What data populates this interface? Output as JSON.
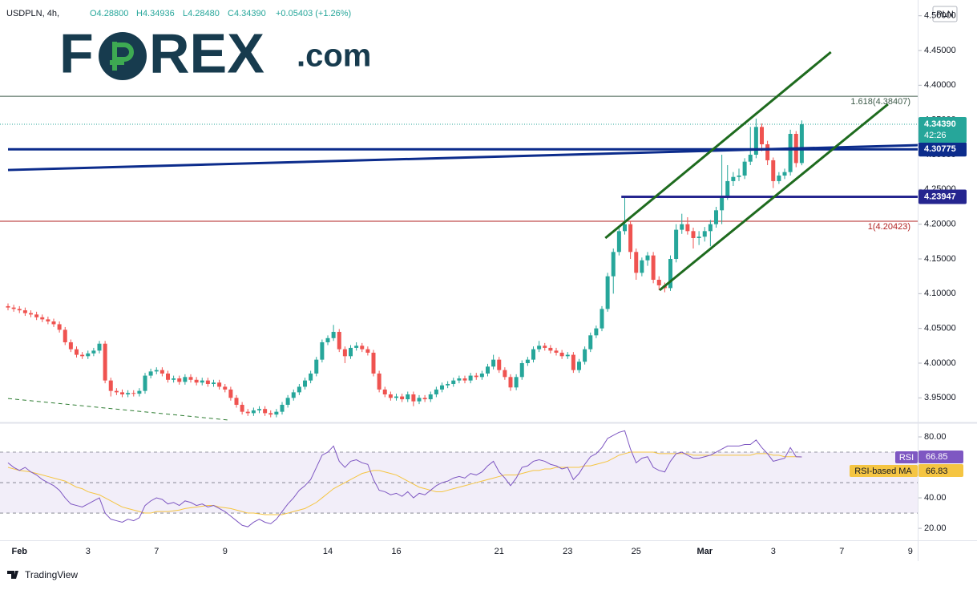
{
  "logo": {
    "parts": [
      "F",
      "REX",
      ".com"
    ]
  },
  "footer": "TradingView",
  "chart_data": {
    "type": "candlestick",
    "symbol": "USDPLN, 4h,",
    "header": [
      "O4.28800",
      "H4.34936",
      "L4.28480",
      "C4.34390",
      "+0.05403 (+1.26%)"
    ],
    "currency": "PLN",
    "categories": [
      null,
      null,
      "Feb",
      null,
      null,
      null,
      null,
      null,
      null,
      null,
      null,
      null,
      null,
      null,
      "3",
      null,
      null,
      null,
      null,
      null,
      null,
      null,
      null,
      null,
      null,
      null,
      "7",
      null,
      null,
      null,
      null,
      null,
      null,
      null,
      null,
      null,
      null,
      null,
      "9",
      null,
      null,
      null,
      null,
      null,
      null,
      null,
      null,
      null,
      null,
      null,
      null,
      null,
      null,
      null,
      null,
      null,
      "14",
      null,
      null,
      null,
      null,
      null,
      null,
      null,
      null,
      null,
      null,
      null,
      "16",
      null,
      null,
      null,
      null,
      null,
      null,
      null,
      null,
      null,
      null,
      null,
      null,
      null,
      null,
      null,
      null,
      null,
      "21",
      null,
      null,
      null,
      null,
      null,
      null,
      null,
      null,
      null,
      null,
      null,
      "23",
      null,
      null,
      null,
      null,
      null,
      null,
      null,
      null,
      null,
      null,
      null,
      "25",
      null,
      null,
      null,
      null,
      null,
      null,
      null,
      null,
      null,
      null,
      null,
      "Mar",
      null,
      null,
      null,
      null,
      null,
      null,
      null,
      null,
      null,
      null,
      null,
      "3",
      null,
      null,
      null,
      null,
      null,
      null,
      null,
      null,
      null,
      null,
      null,
      "7",
      null,
      null,
      null,
      null,
      null,
      null,
      null,
      null,
      null,
      null,
      null,
      "9",
      null
    ],
    "open": [
      4.082,
      4.08,
      4.078,
      4.076,
      4.072,
      4.07,
      4.066,
      4.063,
      4.06,
      4.056,
      4.048,
      4.03,
      4.02,
      4.012,
      4.01,
      4.014,
      4.018,
      4.028,
      3.975,
      3.96,
      3.958,
      3.955,
      3.957,
      3.956,
      3.96,
      3.982,
      3.988,
      3.99,
      3.985,
      3.976,
      3.978,
      3.973,
      3.98,
      3.976,
      3.972,
      3.975,
      3.97,
      3.972,
      3.966,
      3.962,
      3.95,
      3.94,
      3.93,
      3.928,
      3.932,
      3.934,
      3.928,
      3.926,
      3.93,
      3.94,
      3.95,
      3.958,
      3.966,
      3.975,
      3.985,
      4.005,
      4.03,
      4.036,
      4.045,
      4.02,
      4.01,
      4.022,
      4.025,
      4.02,
      4.015,
      3.985,
      3.962,
      3.955,
      3.95,
      3.952,
      3.948,
      3.955,
      3.945,
      3.95,
      3.948,
      3.955,
      3.962,
      3.968,
      3.97,
      3.975,
      3.978,
      3.975,
      3.982,
      3.98,
      3.985,
      3.995,
      4.005,
      3.99,
      3.98,
      3.965,
      3.98,
      4.0,
      4.005,
      4.02,
      4.025,
      4.022,
      4.018,
      4.015,
      4.01,
      4.012,
      3.99,
      4.002,
      4.02,
      4.04,
      4.05,
      4.078,
      4.125,
      4.16,
      4.19,
      4.2,
      4.16,
      4.13,
      4.148,
      4.155,
      4.12,
      4.112,
      4.108,
      4.15,
      4.192,
      4.2,
      4.19,
      4.18,
      4.182,
      4.19,
      4.2,
      4.22,
      4.24,
      4.262,
      4.268,
      4.27,
      4.29,
      4.3,
      4.34,
      4.315,
      4.292,
      4.262,
      4.27,
      4.275,
      4.33,
      4.288,
      null,
      null,
      null,
      null,
      null,
      null,
      null,
      null,
      null,
      null,
      null,
      null,
      null,
      null,
      null,
      null,
      null,
      null,
      null,
      null
    ],
    "high": [
      4.086,
      4.084,
      4.082,
      4.08,
      4.076,
      4.074,
      4.07,
      4.067,
      4.064,
      4.06,
      4.052,
      4.034,
      4.024,
      4.016,
      4.018,
      4.022,
      4.032,
      4.032,
      3.979,
      3.964,
      3.962,
      3.961,
      3.961,
      3.964,
      3.986,
      3.992,
      3.994,
      3.994,
      3.989,
      3.982,
      3.982,
      3.984,
      3.984,
      3.98,
      3.979,
      3.979,
      3.976,
      3.976,
      3.97,
      3.966,
      3.954,
      3.944,
      3.934,
      3.936,
      3.938,
      3.938,
      3.932,
      3.934,
      3.944,
      3.954,
      3.962,
      3.97,
      3.979,
      3.989,
      4.009,
      4.034,
      4.04,
      4.055,
      4.049,
      4.024,
      4.026,
      4.03,
      4.029,
      4.024,
      4.019,
      3.989,
      3.966,
      3.959,
      3.956,
      3.956,
      3.959,
      3.959,
      3.954,
      3.954,
      3.959,
      3.966,
      3.972,
      3.974,
      3.979,
      3.982,
      3.982,
      3.986,
      3.986,
      3.989,
      3.999,
      4.012,
      4.009,
      3.994,
      3.984,
      3.984,
      4.004,
      4.009,
      4.024,
      4.032,
      4.029,
      4.026,
      4.022,
      4.019,
      4.016,
      4.016,
      4.006,
      4.024,
      4.044,
      4.054,
      4.082,
      4.13,
      4.165,
      4.196,
      4.239,
      4.205,
      4.165,
      4.152,
      4.16,
      4.16,
      4.125,
      4.116,
      4.155,
      4.2,
      4.215,
      4.21,
      4.195,
      4.19,
      4.196,
      4.206,
      4.225,
      4.3,
      4.285,
      4.275,
      4.28,
      4.295,
      4.34,
      4.352,
      4.345,
      4.32,
      4.296,
      4.275,
      4.28,
      4.336,
      4.334,
      4.34936,
      null,
      null,
      null,
      null,
      null,
      null,
      null,
      null,
      null,
      null,
      null,
      null,
      null,
      null,
      null,
      null,
      null,
      null,
      null,
      null
    ],
    "low": [
      4.076,
      4.074,
      4.072,
      4.068,
      4.066,
      4.062,
      4.059,
      4.056,
      4.052,
      4.044,
      4.026,
      4.016,
      4.008,
      4.006,
      4.006,
      4.01,
      4.014,
      3.971,
      3.952,
      3.954,
      3.951,
      3.951,
      3.952,
      3.952,
      3.956,
      3.978,
      3.984,
      3.981,
      3.972,
      3.972,
      3.969,
      3.969,
      3.972,
      3.968,
      3.968,
      3.966,
      3.966,
      3.962,
      3.958,
      3.946,
      3.936,
      3.926,
      3.924,
      3.924,
      3.928,
      3.924,
      3.922,
      3.922,
      3.926,
      3.936,
      3.946,
      3.954,
      3.962,
      3.971,
      3.981,
      4.001,
      4.026,
      4.032,
      4.016,
      4.0,
      4.006,
      4.018,
      4.016,
      4.011,
      3.981,
      3.958,
      3.951,
      3.946,
      3.946,
      3.944,
      3.944,
      3.938,
      3.941,
      3.944,
      3.944,
      3.951,
      3.958,
      3.964,
      3.966,
      3.971,
      3.971,
      3.971,
      3.976,
      3.976,
      3.981,
      3.991,
      3.986,
      3.976,
      3.96,
      3.961,
      3.976,
      3.996,
      4.001,
      4.016,
      4.018,
      4.014,
      4.011,
      4.006,
      4.006,
      3.986,
      3.986,
      3.998,
      4.016,
      4.036,
      4.046,
      4.074,
      4.1,
      4.155,
      4.185,
      4.15,
      4.12,
      4.125,
      4.14,
      4.115,
      4.105,
      4.102,
      4.104,
      4.145,
      4.186,
      4.185,
      4.165,
      4.17,
      4.175,
      4.168,
      4.195,
      4.2,
      4.235,
      4.255,
      4.262,
      4.265,
      4.285,
      4.295,
      4.305,
      4.285,
      4.252,
      4.258,
      4.265,
      4.27,
      4.282,
      4.2848,
      null,
      null,
      null,
      null,
      null,
      null,
      null,
      null,
      null,
      null,
      null,
      null,
      null,
      null,
      null,
      null,
      null,
      null,
      null,
      null
    ],
    "close": [
      4.08,
      4.078,
      4.076,
      4.072,
      4.07,
      4.066,
      4.063,
      4.06,
      4.056,
      4.048,
      4.03,
      4.02,
      4.012,
      4.01,
      4.014,
      4.018,
      4.028,
      3.975,
      3.96,
      3.958,
      3.955,
      3.957,
      3.956,
      3.96,
      3.982,
      3.988,
      3.99,
      3.985,
      3.976,
      3.978,
      3.973,
      3.98,
      3.976,
      3.972,
      3.975,
      3.97,
      3.972,
      3.966,
      3.962,
      3.95,
      3.94,
      3.93,
      3.928,
      3.932,
      3.934,
      3.928,
      3.926,
      3.93,
      3.94,
      3.95,
      3.958,
      3.966,
      3.975,
      3.985,
      4.005,
      4.03,
      4.036,
      4.045,
      4.02,
      4.01,
      4.022,
      4.025,
      4.02,
      4.015,
      3.985,
      3.962,
      3.955,
      3.95,
      3.952,
      3.948,
      3.955,
      3.945,
      3.95,
      3.948,
      3.955,
      3.962,
      3.968,
      3.97,
      3.975,
      3.978,
      3.975,
      3.982,
      3.98,
      3.985,
      3.995,
      4.005,
      3.99,
      3.98,
      3.965,
      3.98,
      4.0,
      4.005,
      4.02,
      4.025,
      4.022,
      4.018,
      4.015,
      4.01,
      4.012,
      3.99,
      4.002,
      4.02,
      4.04,
      4.05,
      4.078,
      4.125,
      4.16,
      4.19,
      4.2,
      4.16,
      4.13,
      4.148,
      4.155,
      4.12,
      4.112,
      4.108,
      4.15,
      4.192,
      4.2,
      4.19,
      4.18,
      4.182,
      4.19,
      4.2,
      4.22,
      4.24,
      4.262,
      4.268,
      4.27,
      4.29,
      4.3,
      4.34,
      4.315,
      4.292,
      4.262,
      4.27,
      4.275,
      4.33,
      4.288,
      4.3439,
      null,
      null,
      null,
      null,
      null,
      null,
      null,
      null,
      null,
      null,
      null,
      null,
      null,
      null,
      null,
      null,
      null,
      null,
      null,
      null
    ],
    "up_color": "#26a69a",
    "down_color": "#ef5350",
    "ylim": [
      3.9169,
      4.5227
    ],
    "yticks": [
      {
        "value": 3.95,
        "label": "3.95000"
      },
      {
        "value": 4.0,
        "label": "4.00000"
      },
      {
        "value": 4.05,
        "label": "4.05000"
      },
      {
        "value": 4.1,
        "label": "4.10000"
      },
      {
        "value": 4.15,
        "label": "4.15000"
      },
      {
        "value": 4.2,
        "label": "4.20000"
      },
      {
        "value": 4.25,
        "label": "4.25000"
      },
      {
        "value": 4.3,
        "label": "4.30000"
      },
      {
        "value": 4.35,
        "label": "4.35000"
      },
      {
        "value": 4.4,
        "label": "4.40000"
      },
      {
        "value": 4.45,
        "label": "4.45000"
      },
      {
        "value": 4.5,
        "label": "4.50000"
      }
    ],
    "grid": false,
    "last_price": {
      "value": 4.3439,
      "label": "4.34390",
      "countdown": "42:26",
      "color": "#26a69a"
    },
    "levels": [
      {
        "value": 4.30775,
        "label": "4.30775",
        "color": "#0c2c8c",
        "start": 0
      },
      {
        "value": 4.23947,
        "label": "4.23947",
        "color": "#25258f",
        "start": 107.4
      }
    ],
    "fib": [
      {
        "value": 4.38407,
        "label": "1.618(4.38407)",
        "color": "#3e5b4a"
      },
      {
        "value": 4.20423,
        "label": "1(4.20423)",
        "color": "#b22222"
      }
    ],
    "trendlines": [
      {
        "x": [
          0,
          159.3
        ],
        "y": [
          4.278,
          4.3138
        ],
        "color": "#0c2c8c",
        "width": 3,
        "dash": false
      },
      {
        "x": [
          104.6,
          144.1
        ],
        "y": [
          4.18,
          4.4477
        ],
        "color": "#1e6b1e",
        "width": 3,
        "dash": false
      },
      {
        "x": [
          114.1,
          154.1
        ],
        "y": [
          4.105,
          4.3727
        ],
        "color": "#1e6b1e",
        "width": 3,
        "dash": false
      },
      {
        "x": [
          0,
          38.6
        ],
        "y": [
          3.949,
          3.918
        ],
        "color": "#2e7d32",
        "width": 1,
        "dash": true
      }
    ],
    "rsi": {
      "name": "RSI",
      "ma_name": "RSI-based MA",
      "value_label": "66.85",
      "ma_label": "66.83",
      "color": "#7e57c2",
      "ma_color": "#f5c542",
      "ylim": [
        13.2,
        87.9
      ],
      "yticks": [
        {
          "value": 20,
          "label": "20.00"
        },
        {
          "value": 40,
          "label": "40.00"
        },
        {
          "value": 80,
          "label": "80.00"
        }
      ],
      "band_upper": 70,
      "band_middle": 50,
      "band_lower": 30,
      "values": [
        63,
        60,
        58,
        60,
        57,
        55,
        52,
        50,
        48,
        45,
        40,
        36,
        35,
        34,
        36,
        38,
        40,
        30,
        26,
        25,
        24,
        26,
        25,
        27,
        35,
        38,
        40,
        39,
        36,
        37,
        35,
        38,
        37,
        35,
        36,
        34,
        35,
        33,
        31,
        28,
        25,
        22,
        21,
        24,
        26,
        24,
        23,
        26,
        31,
        36,
        40,
        45,
        48,
        52,
        60,
        68,
        70,
        74,
        64,
        60,
        64,
        65,
        63,
        62,
        52,
        45,
        44,
        42,
        43,
        41,
        44,
        40,
        43,
        42,
        45,
        48,
        50,
        51,
        53,
        54,
        53,
        56,
        55,
        57,
        61,
        64,
        57,
        53,
        48,
        53,
        60,
        61,
        64,
        65,
        64,
        62,
        61,
        59,
        60,
        52,
        56,
        62,
        67,
        69,
        73,
        79,
        81,
        83,
        84,
        72,
        63,
        66,
        67,
        60,
        58,
        57,
        64,
        69,
        70,
        68,
        66,
        66,
        67,
        68,
        70,
        72,
        74,
        74,
        74,
        75,
        75,
        78,
        73,
        69,
        64,
        65,
        66,
        73,
        67,
        66.85,
        null,
        null,
        null,
        null,
        null,
        null,
        null,
        null,
        null,
        null,
        null,
        null,
        null,
        null,
        null,
        null,
        null,
        null,
        null,
        null
      ],
      "ma": [
        60,
        59,
        58,
        57.5,
        57,
        56,
        55,
        54,
        53,
        52,
        51,
        49,
        47,
        46,
        44,
        43,
        42,
        40,
        38,
        36,
        34,
        33,
        32,
        31,
        30,
        30,
        31,
        31,
        31,
        31.5,
        32,
        33,
        33.5,
        34,
        34.5,
        35,
        35,
        34,
        33.5,
        33,
        32,
        31,
        30,
        30,
        29.5,
        29,
        29,
        29,
        29,
        30,
        31,
        32,
        33,
        35,
        37,
        40,
        43,
        46,
        48,
        50,
        52,
        54,
        56,
        57,
        58,
        58,
        57,
        56,
        55,
        53,
        51,
        49,
        47,
        46,
        45,
        44,
        44,
        45,
        46,
        47,
        48,
        49,
        50,
        51,
        52,
        53,
        54,
        55,
        55,
        55,
        56,
        57,
        58,
        58,
        59,
        59,
        60,
        60,
        60,
        60,
        60,
        61,
        61,
        62,
        63,
        64,
        66,
        68,
        69,
        70,
        70,
        70,
        70,
        70,
        69,
        69,
        69,
        69,
        69,
        69,
        68,
        68,
        68,
        68,
        68,
        68,
        68,
        68,
        68,
        68,
        68,
        69,
        69,
        69,
        68,
        68,
        67,
        67,
        67,
        66.83,
        null,
        null,
        null,
        null,
        null,
        null,
        null,
        null,
        null,
        null,
        null,
        null,
        null,
        null,
        null,
        null,
        null,
        null,
        null,
        null
      ]
    }
  }
}
